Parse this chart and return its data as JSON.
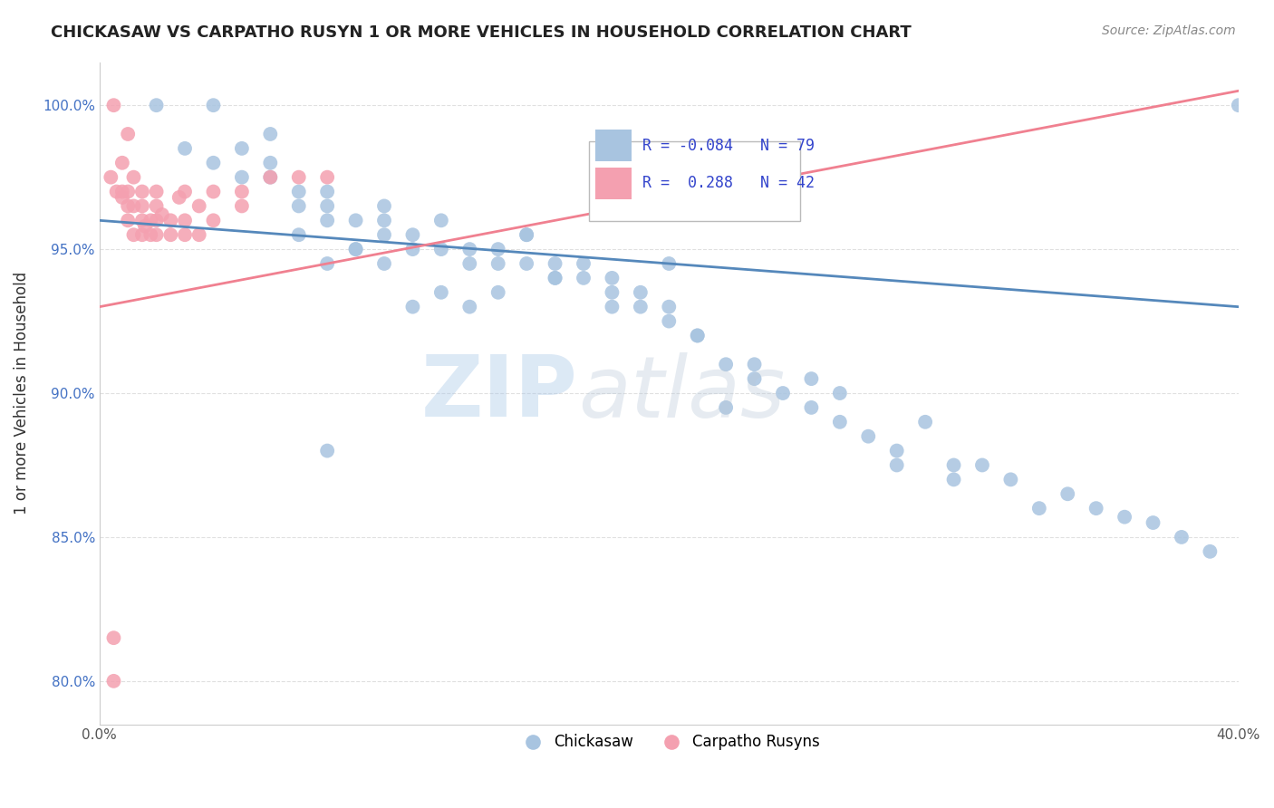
{
  "title": "CHICKASAW VS CARPATHO RUSYN 1 OR MORE VEHICLES IN HOUSEHOLD CORRELATION CHART",
  "source": "Source: ZipAtlas.com",
  "xlabel_chickasaw": "Chickasaw",
  "xlabel_carpatho": "Carpatho Rusyns",
  "ylabel": "1 or more Vehicles in Household",
  "xlim": [
    0.0,
    0.4
  ],
  "ylim": [
    0.785,
    1.015
  ],
  "xtick_positions": [
    0.0,
    0.05,
    0.1,
    0.15,
    0.2,
    0.25,
    0.3,
    0.35,
    0.4
  ],
  "xticklabels": [
    "0.0%",
    "",
    "",
    "",
    "",
    "",
    "",
    "",
    "40.0%"
  ],
  "ytick_positions": [
    0.8,
    0.85,
    0.9,
    0.95,
    1.0
  ],
  "yticklabels": [
    "80.0%",
    "85.0%",
    "90.0%",
    "95.0%",
    "100.0%"
  ],
  "legend_R_blue": "-0.084",
  "legend_N_blue": "79",
  "legend_R_pink": "0.288",
  "legend_N_pink": "42",
  "blue_color": "#a8c4e0",
  "pink_color": "#f4a0b0",
  "blue_line_color": "#5588bb",
  "pink_line_color": "#f08090",
  "watermark_zip": "ZIP",
  "watermark_atlas": "atlas",
  "chickasaw_x": [
    0.02,
    0.04,
    0.05,
    0.06,
    0.06,
    0.07,
    0.07,
    0.08,
    0.08,
    0.08,
    0.09,
    0.09,
    0.1,
    0.1,
    0.1,
    0.11,
    0.11,
    0.12,
    0.12,
    0.13,
    0.13,
    0.14,
    0.14,
    0.15,
    0.15,
    0.16,
    0.16,
    0.17,
    0.18,
    0.18,
    0.19,
    0.19,
    0.2,
    0.2,
    0.21,
    0.22,
    0.23,
    0.24,
    0.25,
    0.26,
    0.27,
    0.28,
    0.3,
    0.32,
    0.33,
    0.35,
    0.37,
    0.38,
    0.2,
    0.25,
    0.12,
    0.13,
    0.08,
    0.09,
    0.07,
    0.1,
    0.11,
    0.14,
    0.16,
    0.18,
    0.21,
    0.23,
    0.26,
    0.29,
    0.31,
    0.34,
    0.36,
    0.39,
    0.15,
    0.17,
    0.08,
    0.06,
    0.05,
    0.04,
    0.03,
    0.22,
    0.28,
    0.3,
    0.4
  ],
  "chickasaw_y": [
    1.0,
    1.0,
    0.975,
    0.98,
    0.99,
    0.965,
    0.97,
    0.96,
    0.97,
    0.965,
    0.96,
    0.95,
    0.955,
    0.96,
    0.965,
    0.95,
    0.955,
    0.95,
    0.96,
    0.945,
    0.95,
    0.945,
    0.95,
    0.945,
    0.955,
    0.94,
    0.945,
    0.94,
    0.93,
    0.94,
    0.93,
    0.935,
    0.925,
    0.93,
    0.92,
    0.91,
    0.905,
    0.9,
    0.895,
    0.89,
    0.885,
    0.88,
    0.87,
    0.87,
    0.86,
    0.86,
    0.855,
    0.85,
    0.945,
    0.905,
    0.935,
    0.93,
    0.945,
    0.95,
    0.955,
    0.945,
    0.93,
    0.935,
    0.94,
    0.935,
    0.92,
    0.91,
    0.9,
    0.89,
    0.875,
    0.865,
    0.857,
    0.845,
    0.955,
    0.945,
    0.88,
    0.975,
    0.985,
    0.98,
    0.985,
    0.895,
    0.875,
    0.875,
    1.0
  ],
  "carpatho_x": [
    0.005,
    0.005,
    0.005,
    0.008,
    0.008,
    0.01,
    0.01,
    0.01,
    0.012,
    0.012,
    0.015,
    0.015,
    0.015,
    0.015,
    0.018,
    0.018,
    0.02,
    0.02,
    0.02,
    0.02,
    0.025,
    0.025,
    0.03,
    0.03,
    0.03,
    0.035,
    0.035,
    0.04,
    0.04,
    0.05,
    0.05,
    0.06,
    0.07,
    0.08,
    0.01,
    0.012,
    0.008,
    0.006,
    0.004,
    0.016,
    0.022,
    0.028
  ],
  "carpatho_y": [
    0.815,
    0.8,
    1.0,
    0.98,
    0.97,
    0.99,
    0.965,
    0.97,
    0.965,
    0.975,
    0.955,
    0.96,
    0.965,
    0.97,
    0.955,
    0.96,
    0.955,
    0.96,
    0.965,
    0.97,
    0.955,
    0.96,
    0.955,
    0.96,
    0.97,
    0.955,
    0.965,
    0.96,
    0.97,
    0.965,
    0.97,
    0.975,
    0.975,
    0.975,
    0.96,
    0.955,
    0.968,
    0.97,
    0.975,
    0.958,
    0.962,
    0.968
  ],
  "blue_trend": [
    0.96,
    0.93
  ],
  "pink_trend": [
    0.93,
    1.005
  ]
}
